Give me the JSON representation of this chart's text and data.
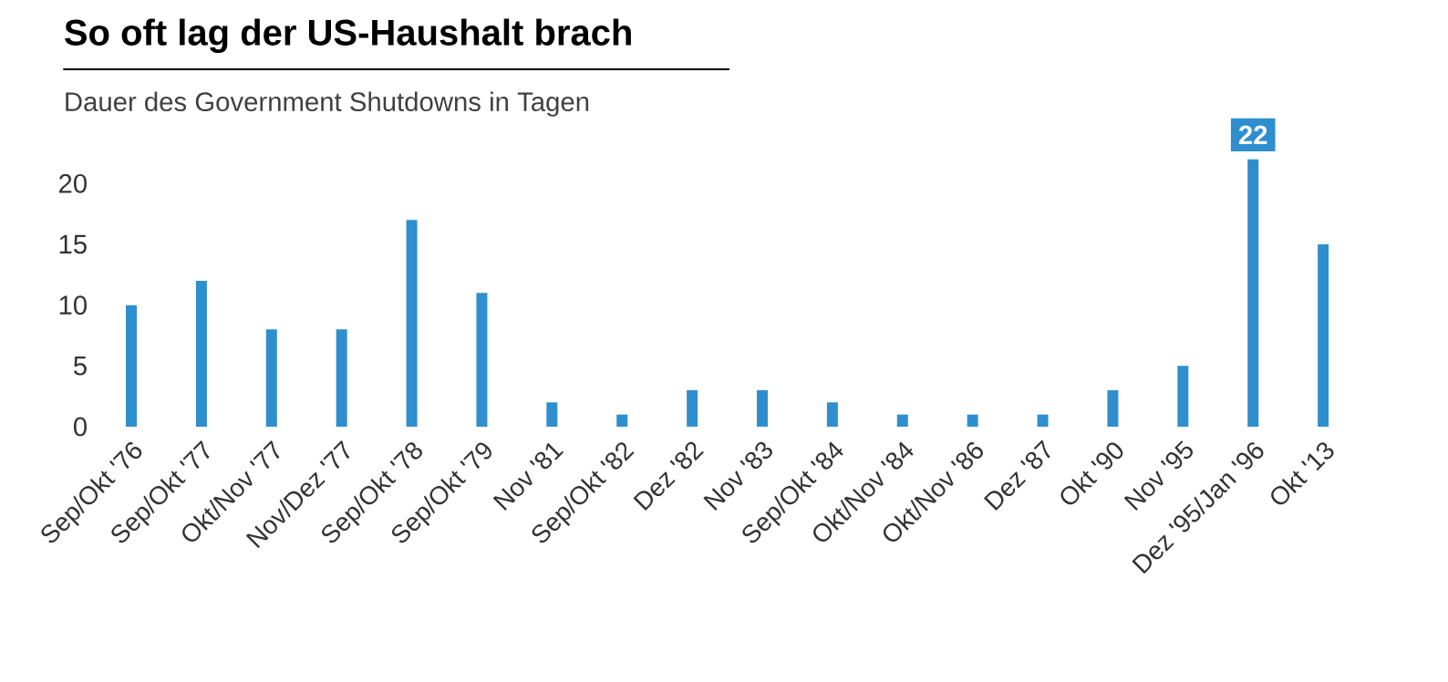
{
  "chart_data": {
    "type": "bar",
    "title": "So oft lag der US-Haushalt brach",
    "subtitle": "Dauer des Government Shutdowns in Tagen",
    "categories": [
      "Sep/Okt '76",
      "Sep/Okt '77",
      "Okt/Nov '77",
      "Nov/Dez '77",
      "Sep/Okt '78",
      "Sep/Okt '79",
      "Nov '81",
      "Sep/Okt '82",
      "Dez '82",
      "Nov '83",
      "Sep/Okt '84",
      "Okt/Nov '84",
      "Okt/Nov '86",
      "Dez '87",
      "Okt '90",
      "Nov '95",
      "Dez '95/Jan '96",
      "Okt '13"
    ],
    "values": [
      10,
      12,
      8,
      8,
      17,
      11,
      2,
      1,
      3,
      3,
      2,
      1,
      1,
      1,
      3,
      5,
      22,
      15
    ],
    "value_labels": [
      null,
      null,
      null,
      null,
      null,
      null,
      null,
      null,
      null,
      null,
      null,
      null,
      null,
      null,
      null,
      null,
      "22",
      null
    ],
    "color": "#2f8fce",
    "ylim": [
      0,
      22
    ],
    "yticks": [
      0,
      5,
      10,
      15,
      20
    ],
    "grid": false
  }
}
